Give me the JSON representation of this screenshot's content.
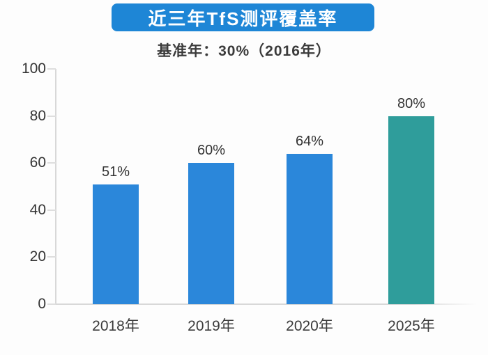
{
  "title": "近三年TfS测评覆盖率",
  "subtitle": "基准年：30%（2016年）",
  "colors": {
    "background": "#FDFDFD",
    "banner_bg": "#1E86D6",
    "banner_text": "#FFFFFF",
    "bar_blue": "#2B87DA",
    "bar_teal": "#2F9D9B",
    "axis_line": "#D8D8D8",
    "text": "#3B3B3B"
  },
  "chart_data": {
    "type": "bar",
    "title": "近三年TfS测评覆盖率",
    "subtitle": "基准年：30%（2016年）",
    "categories": [
      "2018年",
      "2019年",
      "2020年",
      "2025年"
    ],
    "values": [
      51,
      60,
      64,
      80
    ],
    "data_labels": [
      "51%",
      "60%",
      "64%",
      "80%"
    ],
    "bar_colors": [
      "#2B87DA",
      "#2B87DA",
      "#2B87DA",
      "#2F9D9B"
    ],
    "xlabel": "",
    "ylabel": "",
    "ylim": [
      0,
      100
    ],
    "yticks": [
      0,
      20,
      40,
      60,
      80,
      100
    ],
    "grid": false,
    "legend": false
  }
}
